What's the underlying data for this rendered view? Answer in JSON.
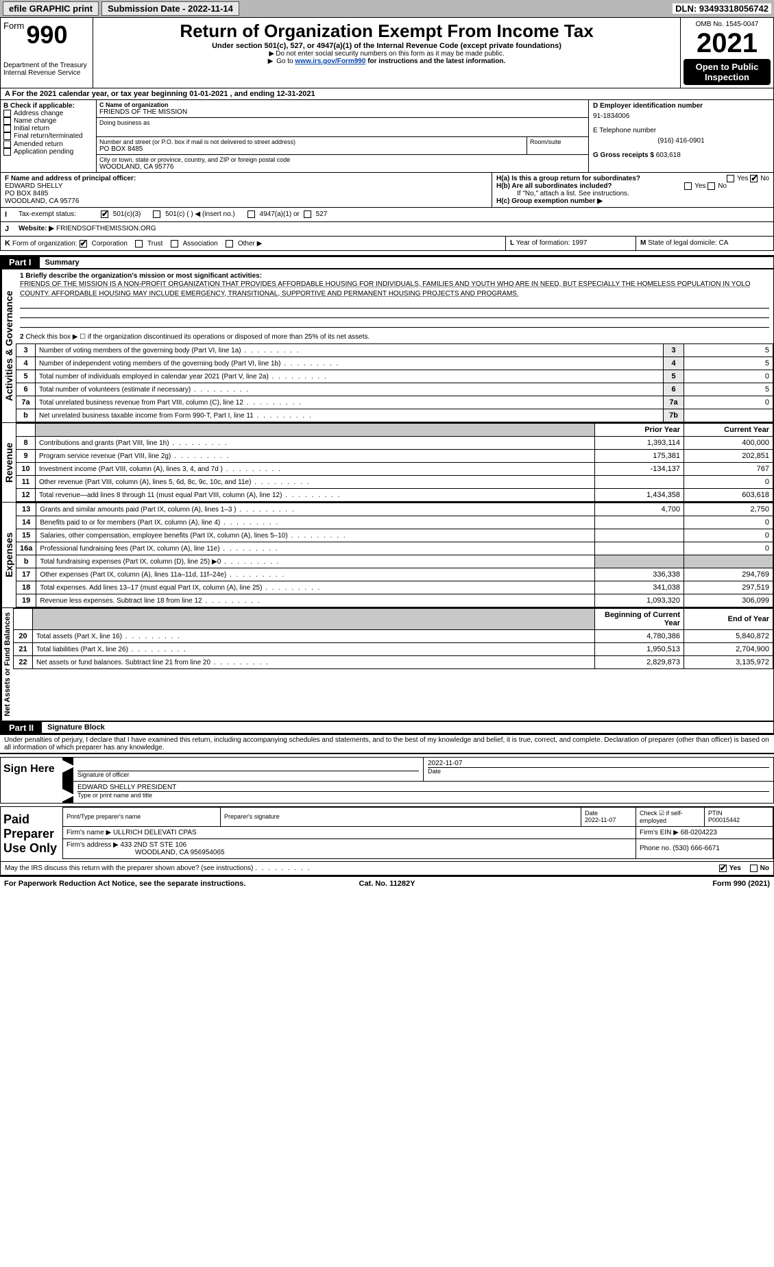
{
  "topbar": {
    "efile_label": "efile GRAPHIC print",
    "submission_label": "Submission Date - 2022-11-14",
    "dln_label": "DLN: 93493318056742"
  },
  "header": {
    "form_word": "Form",
    "form_num": "990",
    "dept": "Department of the Treasury",
    "irs": "Internal Revenue Service",
    "title": "Return of Organization Exempt From Income Tax",
    "sub1": "Under section 501(c), 527, or 4947(a)(1) of the Internal Revenue Code (except private foundations)",
    "sub2": "Do not enter social security numbers on this form as it may be made public.",
    "sub3_pre": "Go to ",
    "sub3_link": "www.irs.gov/Form990",
    "sub3_post": " for instructions and the latest information.",
    "omb": "OMB No. 1545-0047",
    "year": "2021",
    "open": "Open to Public Inspection"
  },
  "A": {
    "text_pre": "For the 2021 calendar year, or tax year beginning ",
    "begin": "01-01-2021",
    "mid": "   , and ending ",
    "end": "12-31-2021"
  },
  "B": {
    "label": "B Check if applicable:",
    "items": [
      "Address change",
      "Name change",
      "Initial return",
      "Final return/terminated",
      "Amended return",
      "Application pending"
    ]
  },
  "C": {
    "name_label": "C Name of organization",
    "name": "FRIENDS OF THE MISSION",
    "dba_label": "Doing business as",
    "dba": "",
    "street_label": "Number and street (or P.O. box if mail is not delivered to street address)",
    "room_label": "Room/suite",
    "street": "PO BOX 8485",
    "city_label": "City or town, state or province, country, and ZIP or foreign postal code",
    "city": "WOODLAND, CA  95776"
  },
  "D": {
    "label": "D Employer identification number",
    "value": "91-1834006",
    "E_label": "E Telephone number",
    "E_value": "(916) 416-0901",
    "G_label": "G Gross receipts $",
    "G_value": "603,618"
  },
  "F": {
    "label": "F  Name and address of principal officer:",
    "name": "EDWARD SHELLY",
    "street": "PO BOX 8485",
    "city": "WOODLAND, CA  95776"
  },
  "H": {
    "a_label": "H(a)  Is this a group return for subordinates?",
    "b_label": "H(b)  Are all subordinates included?",
    "b_note": "If \"No,\" attach a list. See instructions.",
    "c_label": "H(c)  Group exemption number ▶",
    "yes": "Yes",
    "no": "No"
  },
  "I": {
    "label": "Tax-exempt status:",
    "opts": [
      "501(c)(3)",
      "501(c) (  ) ◀ (insert no.)",
      "4947(a)(1) or",
      "527"
    ]
  },
  "J": {
    "label": "Website: ▶",
    "value": "FRIENDSOFTHEMISSION.ORG"
  },
  "K": {
    "label": "Form of organization:",
    "opts": [
      "Corporation",
      "Trust",
      "Association",
      "Other ▶"
    ]
  },
  "L": {
    "label": "Year of formation:",
    "value": "1997"
  },
  "M": {
    "label": "State of legal domicile:",
    "value": "CA"
  },
  "part1": {
    "tag": "Part I",
    "name": "Summary"
  },
  "summary": {
    "l1_label": "1 Briefly describe the organization's mission or most significant activities:",
    "l1_text": "FRIENDS OF THE MISSION IS A NON-PROFIT ORGANIZATION THAT PROVIDES AFFORDABLE HOUSING FOR INDIVIDUALS, FAMILIES AND YOUTH WHO ARE IN NEED, BUT ESPECIALLY THE HOMELESS POPULATION IN YOLO COUNTY. AFFORDABLE HOUSING MAY INCLUDE EMERGENCY, TRANSITIONAL, SUPPORTIVE AND PERMANENT HOUSING PROJECTS AND PROGRAMS.",
    "l2": "Check this box ▶ ☐ if the organization discontinued its operations or disposed of more than 25% of its net assets.",
    "rows_gov": [
      {
        "n": "3",
        "d": "Number of voting members of the governing body (Part VI, line 1a)",
        "rn": "3",
        "v": "5"
      },
      {
        "n": "4",
        "d": "Number of independent voting members of the governing body (Part VI, line 1b)",
        "rn": "4",
        "v": "5"
      },
      {
        "n": "5",
        "d": "Total number of individuals employed in calendar year 2021 (Part V, line 2a)",
        "rn": "5",
        "v": "0"
      },
      {
        "n": "6",
        "d": "Total number of volunteers (estimate if necessary)",
        "rn": "6",
        "v": "5"
      },
      {
        "n": "7a",
        "d": "Total unrelated business revenue from Part VIII, column (C), line 12",
        "rn": "7a",
        "v": "0"
      },
      {
        "n": "b",
        "d": "Net unrelated business taxable income from Form 990-T, Part I, line 11",
        "rn": "7b",
        "v": ""
      }
    ],
    "hdr_prior": "Prior Year",
    "hdr_curr": "Current Year",
    "rows_rev": [
      {
        "n": "8",
        "d": "Contributions and grants (Part VIII, line 1h)",
        "p": "1,393,114",
        "c": "400,000"
      },
      {
        "n": "9",
        "d": "Program service revenue (Part VIII, line 2g)",
        "p": "175,381",
        "c": "202,851"
      },
      {
        "n": "10",
        "d": "Investment income (Part VIII, column (A), lines 3, 4, and 7d )",
        "p": "-134,137",
        "c": "767"
      },
      {
        "n": "11",
        "d": "Other revenue (Part VIII, column (A), lines 5, 6d, 8c, 9c, 10c, and 11e)",
        "p": "",
        "c": "0"
      },
      {
        "n": "12",
        "d": "Total revenue—add lines 8 through 11 (must equal Part VIII, column (A), line 12)",
        "p": "1,434,358",
        "c": "603,618"
      }
    ],
    "rows_exp": [
      {
        "n": "13",
        "d": "Grants and similar amounts paid (Part IX, column (A), lines 1–3 )",
        "p": "4,700",
        "c": "2,750"
      },
      {
        "n": "14",
        "d": "Benefits paid to or for members (Part IX, column (A), line 4)",
        "p": "",
        "c": "0"
      },
      {
        "n": "15",
        "d": "Salaries, other compensation, employee benefits (Part IX, column (A), lines 5–10)",
        "p": "",
        "c": "0"
      },
      {
        "n": "16a",
        "d": "Professional fundraising fees (Part IX, column (A), line 11e)",
        "p": "",
        "c": "0"
      },
      {
        "n": "b",
        "d": "Total fundraising expenses (Part IX, column (D), line 25) ▶0",
        "p": "shade",
        "c": "shade"
      },
      {
        "n": "17",
        "d": "Other expenses (Part IX, column (A), lines 11a–11d, 11f–24e)",
        "p": "336,338",
        "c": "294,769"
      },
      {
        "n": "18",
        "d": "Total expenses. Add lines 13–17 (must equal Part IX, column (A), line 25)",
        "p": "341,038",
        "c": "297,519"
      },
      {
        "n": "19",
        "d": "Revenue less expenses. Subtract line 18 from line 12",
        "p": "1,093,320",
        "c": "306,099"
      }
    ],
    "hdr_begin": "Beginning of Current Year",
    "hdr_end": "End of Year",
    "rows_net": [
      {
        "n": "20",
        "d": "Total assets (Part X, line 16)",
        "p": "4,780,386",
        "c": "5,840,872"
      },
      {
        "n": "21",
        "d": "Total liabilities (Part X, line 26)",
        "p": "1,950,513",
        "c": "2,704,900"
      },
      {
        "n": "22",
        "d": "Net assets or fund balances. Subtract line 21 from line 20",
        "p": "2,829,873",
        "c": "3,135,972"
      }
    ],
    "tab_gov": "Activities & Governance",
    "tab_rev": "Revenue",
    "tab_exp": "Expenses",
    "tab_net": "Net Assets or Fund Balances"
  },
  "part2": {
    "tag": "Part II",
    "name": "Signature Block",
    "penalty": "Under penalties of perjury, I declare that I have examined this return, including accompanying schedules and statements, and to the best of my knowledge and belief, it is true, correct, and complete. Declaration of preparer (other than officer) is based on all information of which preparer has any knowledge."
  },
  "sign": {
    "here": "Sign Here",
    "sig_lbl": "Signature of officer",
    "date_lbl": "Date",
    "date": "2022-11-07",
    "name": "EDWARD SHELLY PRESIDENT",
    "name_lbl": "Type or print name and title"
  },
  "paid": {
    "title": "Paid Preparer Use Only",
    "h1": "Print/Type preparer's name",
    "h2": "Preparer's signature",
    "h3": "Date",
    "h3v": "2022-11-07",
    "h4": "Check ☑ if self-employed",
    "h5": "PTIN",
    "h5v": "P00015442",
    "firm_lbl": "Firm's name    ▶",
    "firm": "ULLRICH DELEVATI CPAS",
    "ein_lbl": "Firm's EIN ▶",
    "ein": "68-0204223",
    "addr_lbl": "Firm's address ▶",
    "addr": "433 2ND ST STE 106",
    "addr2": "WOODLAND, CA  956954065",
    "phone_lbl": "Phone no.",
    "phone": "(530) 666-6671"
  },
  "discuss": {
    "q": "May the IRS discuss this return with the preparer shown above? (see instructions)",
    "yes": "Yes",
    "no": "No"
  },
  "footer": {
    "l": "For Paperwork Reduction Act Notice, see the separate instructions.",
    "c": "Cat. No. 11282Y",
    "r": "Form 990 (2021)"
  }
}
